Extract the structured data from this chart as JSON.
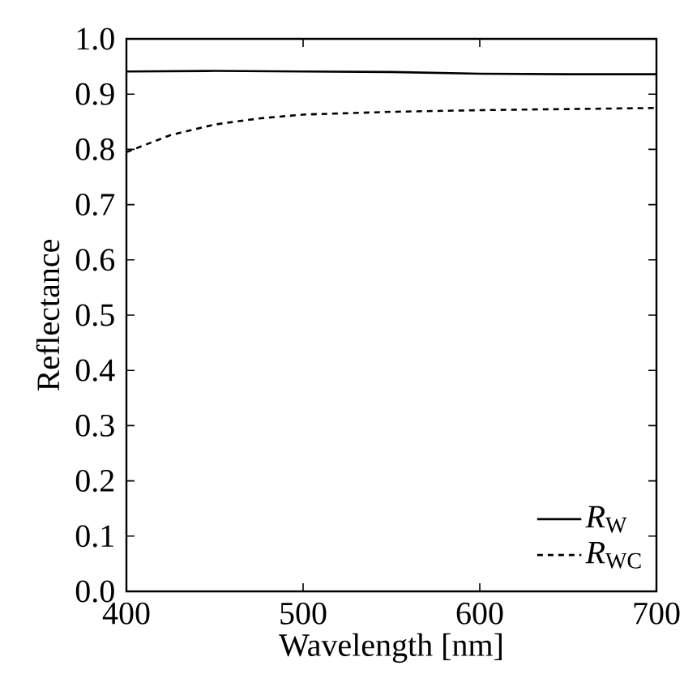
{
  "chart_data": {
    "type": "line",
    "xlabel": "Wavelength [nm]",
    "ylabel": "Reflectance",
    "xlim": [
      400,
      700
    ],
    "ylim": [
      0,
      1
    ],
    "xticks": [
      400,
      500,
      600,
      700
    ],
    "yticks": [
      {
        "value": 0,
        "label": "0.0"
      },
      0.1,
      0.2,
      0.3,
      0.4,
      0.5,
      0.6,
      0.7,
      0.8,
      0.9,
      {
        "value": 1,
        "label": "1.0"
      }
    ],
    "legend": "bottom right",
    "grid": false,
    "marker": "none",
    "series": [
      {
        "name": "*R*$_{W}$",
        "color": "#000000",
        "line_style": "solid",
        "x": [
          400,
          450,
          500,
          550,
          600,
          650,
          700
        ],
        "values": [
          0.941,
          0.942,
          0.941,
          0.94,
          0.937,
          0.936,
          0.936
        ]
      },
      {
        "name": "*R*$_{WC}$",
        "color": "#000000",
        "line_style": "dashed",
        "x": [
          400,
          425,
          450,
          475,
          500,
          550,
          600,
          650,
          700
        ],
        "values": [
          0.795,
          0.826,
          0.845,
          0.856,
          0.863,
          0.868,
          0.871,
          0.873,
          0.875
        ]
      }
    ]
  }
}
